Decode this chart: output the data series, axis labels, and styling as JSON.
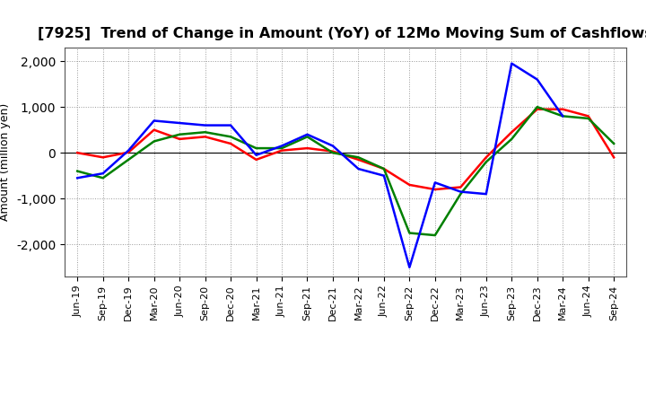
{
  "title": "[7925]  Trend of Change in Amount (YoY) of 12Mo Moving Sum of Cashflows",
  "ylabel": "Amount (million yen)",
  "x_labels": [
    "Jun-19",
    "Sep-19",
    "Dec-19",
    "Mar-20",
    "Jun-20",
    "Sep-20",
    "Dec-20",
    "Mar-21",
    "Jun-21",
    "Sep-21",
    "Dec-21",
    "Mar-22",
    "Jun-22",
    "Sep-22",
    "Dec-22",
    "Mar-23",
    "Jun-23",
    "Sep-23",
    "Dec-23",
    "Mar-24",
    "Jun-24",
    "Sep-24"
  ],
  "operating": [
    0,
    -100,
    10,
    500,
    300,
    350,
    200,
    -150,
    50,
    100,
    30,
    -150,
    -350,
    -700,
    -800,
    -750,
    -100,
    450,
    950,
    950,
    800,
    -100
  ],
  "investing": [
    -400,
    -550,
    -150,
    250,
    400,
    450,
    350,
    100,
    100,
    350,
    0,
    -100,
    -350,
    -1750,
    -1800,
    -900,
    -200,
    300,
    1000,
    800,
    750,
    200
  ],
  "free": [
    -550,
    -450,
    50,
    700,
    650,
    600,
    600,
    -50,
    150,
    400,
    150,
    -350,
    -500,
    -2500,
    -650,
    -850,
    -900,
    1950,
    1600,
    800,
    null,
    null
  ],
  "operating_color": "#ff0000",
  "investing_color": "#008000",
  "free_color": "#0000ff",
  "ylim": [
    -2700,
    2300
  ],
  "yticks": [
    -2000,
    -1000,
    0,
    1000,
    2000
  ],
  "background_color": "#ffffff",
  "grid_color": "#999999",
  "title_fontsize": 11.5,
  "axis_fontsize": 9,
  "tick_fontsize": 8,
  "legend_fontsize": 9.5
}
